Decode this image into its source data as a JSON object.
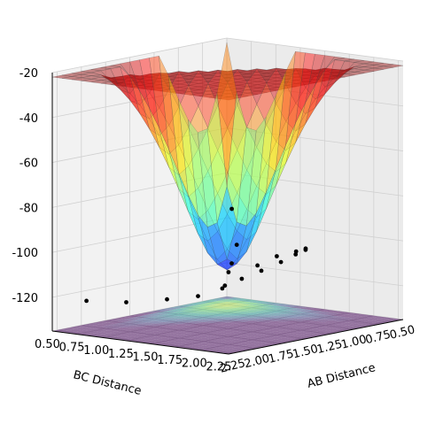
{
  "chart_data": {
    "type": "surface3d",
    "title": "",
    "xlabel": "AB Distance",
    "ylabel": "BC Distance",
    "zlabel": "",
    "x_ticks": [
      "2.25",
      "2.00",
      "1.75",
      "1.50",
      "1.25",
      "1.00",
      "0.75",
      "0.50"
    ],
    "y_ticks": [
      "0.50",
      "0.75",
      "1.00",
      "1.25",
      "1.50",
      "1.75",
      "2.00",
      "2.25"
    ],
    "z_ticks": [
      "-20",
      "-40",
      "-60",
      "-80",
      "-100",
      "-120"
    ],
    "xlim": [
      0.5,
      2.3
    ],
    "ylim": [
      0.5,
      2.3
    ],
    "zlim": [
      -135,
      -20
    ],
    "grid": true,
    "colormap_surface": "jet",
    "colormap_contour": "viridis",
    "surface_alpha": 0.45,
    "scatter_color": "#000000",
    "series": [
      {
        "type": "surface",
        "levels": [
          -115,
          -105,
          -100,
          -90,
          -80,
          -60,
          -40,
          -20
        ]
      },
      {
        "type": "scatter",
        "points": [
          [
            2.2,
            2.2,
            -100
          ],
          [
            1.8,
            2.1,
            -101
          ],
          [
            1.5,
            2.0,
            -100
          ],
          [
            1.2,
            1.9,
            -101
          ],
          [
            1.0,
            1.8,
            -102
          ],
          [
            0.9,
            1.7,
            -104
          ],
          [
            0.8,
            1.5,
            -108
          ],
          [
            0.75,
            1.3,
            -113
          ],
          [
            0.75,
            1.1,
            -118
          ],
          [
            0.8,
            0.95,
            -122
          ],
          [
            0.9,
            0.85,
            -126
          ],
          [
            1.1,
            0.8,
            -128
          ],
          [
            1.4,
            0.78,
            -127
          ],
          [
            1.8,
            0.76,
            -125
          ],
          [
            2.2,
            0.75,
            -121
          ],
          [
            0.6,
            0.7,
            -110
          ],
          [
            0.55,
            0.6,
            -95
          ],
          [
            0.5,
            0.55,
            -120
          ],
          [
            0.52,
            0.5,
            -130
          ]
        ]
      }
    ]
  }
}
